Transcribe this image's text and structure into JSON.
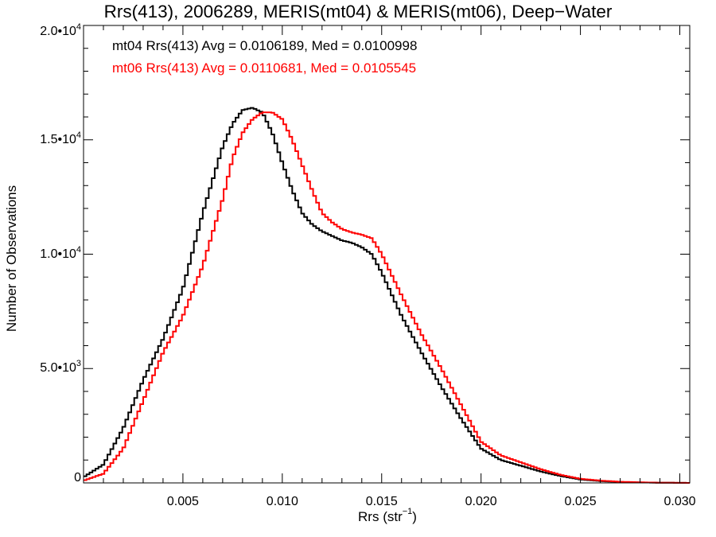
{
  "chart_data": {
    "type": "histogram",
    "title": "Rrs(413), 2006289, MERIS(mt04) & MERIS(mt06), Deep−Water",
    "xlabel": "Rrs (str",
    "xlabel_exp": "−1",
    "xlabel_close": ")",
    "ylabel": "Number of Observations",
    "xlim": [
      0.0,
      0.0305
    ],
    "ylim": [
      0,
      20000
    ],
    "x_ticks": [
      {
        "value": 0.005,
        "label": "0.005"
      },
      {
        "value": 0.01,
        "label": "0.010"
      },
      {
        "value": 0.015,
        "label": "0.015"
      },
      {
        "value": 0.02,
        "label": "0.020"
      },
      {
        "value": 0.025,
        "label": "0.025"
      },
      {
        "value": 0.03,
        "label": "0.030"
      }
    ],
    "y_ticks": [
      {
        "value": 0,
        "mant": "0",
        "exp": ""
      },
      {
        "value": 5000,
        "mant": "5.0•10",
        "exp": "3"
      },
      {
        "value": 10000,
        "mant": "1.0•10",
        "exp": "4"
      },
      {
        "value": 15000,
        "mant": "1.5•10",
        "exp": "4"
      },
      {
        "value": 20000,
        "mant": "2.0•10",
        "exp": "4"
      }
    ],
    "legend": [
      {
        "text": "mt04 Rrs(413) Avg = 0.0106189, Med = 0.0100998",
        "color": "#000000"
      },
      {
        "text": "mt06 Rrs(413) Avg = 0.0110681, Med = 0.0105545",
        "color": "#ff0000"
      }
    ],
    "series": [
      {
        "color": "#000000",
        "x": [
          0.0,
          0.001,
          0.002,
          0.003,
          0.004,
          0.005,
          0.006,
          0.007,
          0.0075,
          0.008,
          0.0085,
          0.009,
          0.0095,
          0.01,
          0.0105,
          0.011,
          0.0115,
          0.012,
          0.0125,
          0.013,
          0.0135,
          0.014,
          0.0145,
          0.015,
          0.016,
          0.017,
          0.018,
          0.019,
          0.02,
          0.021,
          0.022,
          0.023,
          0.024,
          0.025,
          0.026,
          0.027,
          0.028,
          0.029,
          0.0305
        ],
        "values": [
          250,
          800,
          2400,
          4500,
          6300,
          8500,
          11800,
          14700,
          15700,
          16300,
          16400,
          16200,
          15300,
          14000,
          12800,
          11800,
          11300,
          11000,
          10800,
          10600,
          10500,
          10300,
          10000,
          9200,
          7300,
          5700,
          4200,
          2800,
          1500,
          1000,
          750,
          500,
          300,
          150,
          80,
          40,
          20,
          10,
          0
        ]
      },
      {
        "color": "#ff0000",
        "x": [
          0.0,
          0.001,
          0.002,
          0.003,
          0.004,
          0.005,
          0.006,
          0.007,
          0.0075,
          0.008,
          0.0085,
          0.009,
          0.0095,
          0.01,
          0.0105,
          0.011,
          0.0115,
          0.012,
          0.0125,
          0.013,
          0.0135,
          0.014,
          0.0145,
          0.015,
          0.016,
          0.017,
          0.018,
          0.019,
          0.02,
          0.021,
          0.022,
          0.023,
          0.024,
          0.025,
          0.026,
          0.027,
          0.028,
          0.029,
          0.0305
        ],
        "values": [
          100,
          400,
          1500,
          3600,
          5700,
          7300,
          9500,
          12400,
          14200,
          15300,
          15900,
          16200,
          16200,
          15900,
          15000,
          13900,
          12800,
          11800,
          11400,
          11100,
          10950,
          10850,
          10700,
          10000,
          8200,
          6500,
          5000,
          3400,
          1800,
          1200,
          900,
          600,
          350,
          180,
          100,
          50,
          25,
          10,
          0
        ]
      }
    ]
  }
}
